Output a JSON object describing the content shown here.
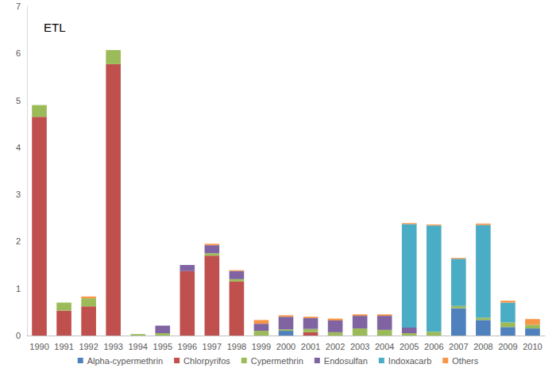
{
  "chart_data": {
    "type": "bar",
    "title": "ETL",
    "stacked": true,
    "grid": false,
    "legend": "bottom",
    "categories": [
      "1990",
      "1991",
      "1992",
      "1993",
      "1994",
      "1995",
      "1996",
      "1997",
      "1998",
      "1999",
      "2000",
      "2001",
      "2002",
      "2003",
      "2004",
      "2005",
      "2006",
      "2007",
      "2008",
      "2009",
      "2010"
    ],
    "ylim": [
      0,
      7
    ],
    "yticks": [
      0,
      1,
      2,
      3,
      4,
      5,
      6,
      7
    ],
    "series": [
      {
        "name": "Alpha-cypermethrin",
        "color": "#4f81bd",
        "values": [
          0,
          0,
          0,
          0,
          0,
          0,
          0,
          0,
          0,
          0,
          0.1,
          0,
          0,
          0,
          0,
          0,
          0,
          0.58,
          0.33,
          0.18,
          0.15
        ]
      },
      {
        "name": "Chlorpyrifos",
        "color": "#c0504d",
        "values": [
          4.65,
          0.53,
          0.62,
          5.77,
          0,
          0,
          1.37,
          1.7,
          1.15,
          0,
          0,
          0.07,
          0,
          0,
          0,
          0,
          0,
          0,
          0,
          0,
          0
        ]
      },
      {
        "name": "Cypermethrin",
        "color": "#9bbb59",
        "values": [
          0.25,
          0.17,
          0.17,
          0.3,
          0.03,
          0.05,
          0,
          0.05,
          0.05,
          0.1,
          0.03,
          0.07,
          0.07,
          0.15,
          0.12,
          0.05,
          0.08,
          0.05,
          0.05,
          0.1,
          0.08
        ]
      },
      {
        "name": "Endosulfan",
        "color": "#8064a2",
        "values": [
          0,
          0,
          0,
          0,
          0,
          0.16,
          0.13,
          0.17,
          0.17,
          0.15,
          0.27,
          0.23,
          0.25,
          0.27,
          0.3,
          0.12,
          0,
          0,
          0,
          0,
          0
        ]
      },
      {
        "name": "Indoxacarb",
        "color": "#4bacc6",
        "values": [
          0,
          0,
          0,
          0,
          0,
          0,
          0,
          0,
          0,
          0,
          0,
          0,
          0,
          0,
          0,
          2.2,
          2.26,
          1.0,
          1.97,
          0.42,
          0
        ]
      },
      {
        "name": "Others",
        "color": "#f79646",
        "values": [
          0,
          0,
          0.04,
          0,
          0,
          0,
          0,
          0.03,
          0.02,
          0.08,
          0.03,
          0.03,
          0.04,
          0.03,
          0.03,
          0.02,
          0.02,
          0.02,
          0.03,
          0.04,
          0.12
        ]
      }
    ]
  }
}
